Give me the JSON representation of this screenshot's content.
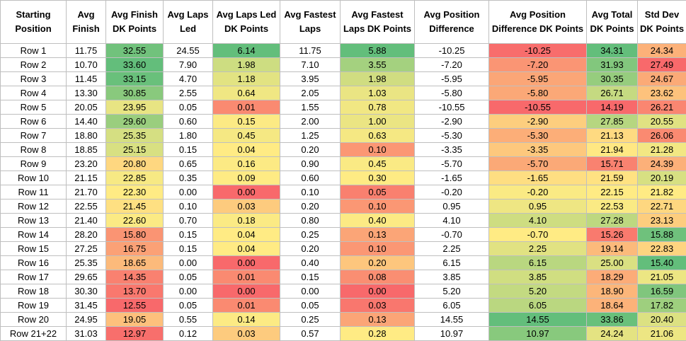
{
  "table": {
    "headers": [
      "Starting Position",
      "Avg Finish",
      "Avg Finish DK Points",
      "Avg Laps Led",
      "Avg Laps Led DK Points",
      "Avg Fastest Laps",
      "Avg Fastest Laps DK Points",
      "Avg Position Difference",
      "Avg Position Difference DK Points",
      "Avg Total DK Points",
      "Std Dev DK Points"
    ],
    "rows": [
      [
        "Row 1",
        "11.75",
        "32.55",
        "24.55",
        "6.14",
        "11.75",
        "5.88",
        "-10.25",
        "-10.25",
        "34.31",
        "24.34"
      ],
      [
        "Row 2",
        "10.70",
        "33.60",
        "7.90",
        "1.98",
        "7.10",
        "3.55",
        "-7.20",
        "-7.20",
        "31.93",
        "27.49"
      ],
      [
        "Row 3",
        "11.45",
        "33.15",
        "4.70",
        "1.18",
        "3.95",
        "1.98",
        "-5.95",
        "-5.95",
        "30.35",
        "24.67"
      ],
      [
        "Row 4",
        "13.30",
        "30.85",
        "2.55",
        "0.64",
        "2.05",
        "1.03",
        "-5.80",
        "-5.80",
        "26.71",
        "23.62"
      ],
      [
        "Row 5",
        "20.05",
        "23.95",
        "0.05",
        "0.01",
        "1.55",
        "0.78",
        "-10.55",
        "-10.55",
        "14.19",
        "26.21"
      ],
      [
        "Row 6",
        "14.40",
        "29.60",
        "0.60",
        "0.15",
        "2.00",
        "1.00",
        "-2.90",
        "-2.90",
        "27.85",
        "20.55"
      ],
      [
        "Row 7",
        "18.80",
        "25.35",
        "1.80",
        "0.45",
        "1.25",
        "0.63",
        "-5.30",
        "-5.30",
        "21.13",
        "26.06"
      ],
      [
        "Row 8",
        "18.85",
        "25.15",
        "0.15",
        "0.04",
        "0.20",
        "0.10",
        "-3.35",
        "-3.35",
        "21.94",
        "21.28"
      ],
      [
        "Row 9",
        "23.20",
        "20.80",
        "0.65",
        "0.16",
        "0.90",
        "0.45",
        "-5.70",
        "-5.70",
        "15.71",
        "24.39"
      ],
      [
        "Row 10",
        "21.15",
        "22.85",
        "0.35",
        "0.09",
        "0.60",
        "0.30",
        "-1.65",
        "-1.65",
        "21.59",
        "20.19"
      ],
      [
        "Row 11",
        "21.70",
        "22.30",
        "0.00",
        "0.00",
        "0.10",
        "0.05",
        "-0.20",
        "-0.20",
        "22.15",
        "21.82"
      ],
      [
        "Row 12",
        "22.55",
        "21.45",
        "0.10",
        "0.03",
        "0.20",
        "0.10",
        "0.95",
        "0.95",
        "22.53",
        "22.71"
      ],
      [
        "Row 13",
        "21.40",
        "22.60",
        "0.70",
        "0.18",
        "0.80",
        "0.40",
        "4.10",
        "4.10",
        "27.28",
        "23.13"
      ],
      [
        "Row 14",
        "28.20",
        "15.80",
        "0.15",
        "0.04",
        "0.25",
        "0.13",
        "-0.70",
        "-0.70",
        "15.26",
        "15.88"
      ],
      [
        "Row 15",
        "27.25",
        "16.75",
        "0.15",
        "0.04",
        "0.20",
        "0.10",
        "2.25",
        "2.25",
        "19.14",
        "22.83"
      ],
      [
        "Row 16",
        "25.35",
        "18.65",
        "0.00",
        "0.00",
        "0.40",
        "0.20",
        "6.15",
        "6.15",
        "25.00",
        "15.40"
      ],
      [
        "Row 17",
        "29.65",
        "14.35",
        "0.05",
        "0.01",
        "0.15",
        "0.08",
        "3.85",
        "3.85",
        "18.29",
        "21.05"
      ],
      [
        "Row 18",
        "30.30",
        "13.70",
        "0.00",
        "0.00",
        "0.00",
        "0.00",
        "5.20",
        "5.20",
        "18.90",
        "16.59"
      ],
      [
        "Row 19",
        "31.45",
        "12.55",
        "0.05",
        "0.01",
        "0.05",
        "0.03",
        "6.05",
        "6.05",
        "18.64",
        "17.82"
      ],
      [
        "Row 20",
        "24.95",
        "19.05",
        "0.55",
        "0.14",
        "0.25",
        "0.13",
        "14.55",
        "14.55",
        "33.86",
        "20.40"
      ],
      [
        "Row 21+22",
        "31.03",
        "12.97",
        "0.12",
        "0.03",
        "0.57",
        "0.28",
        "10.97",
        "10.97",
        "24.24",
        "21.06"
      ]
    ]
  }
}
